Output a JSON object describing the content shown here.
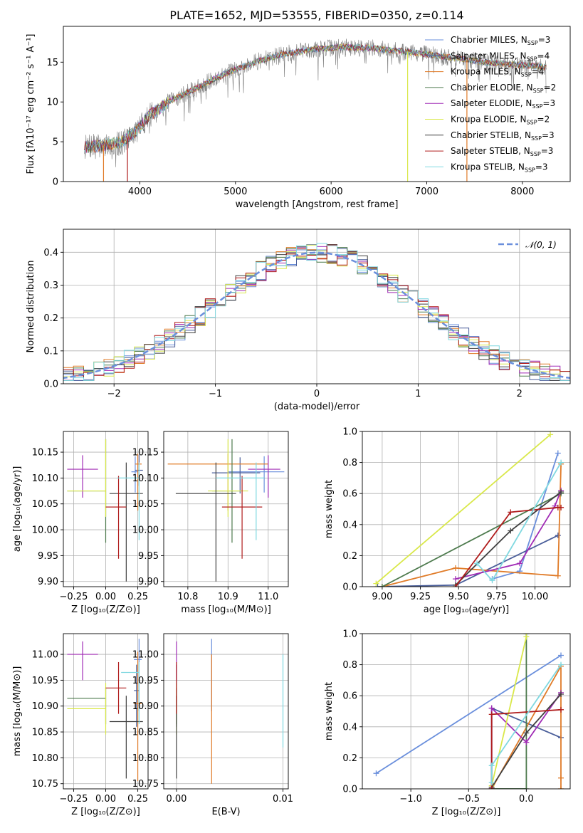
{
  "chart_data": [
    {
      "id": "spectrum",
      "type": "line",
      "title": "PLATE=1652, MJD=53555, FIBERID=0350, z=0.114",
      "xlabel": "wavelength [Angstrom, rest frame]",
      "ylabel": "Flux [fλ10⁻¹⁷ erg cm⁻² s⁻¹ A⁻¹]",
      "xlim": [
        3200,
        8500
      ],
      "ylim": [
        0,
        19.5
      ],
      "xticks": [
        4000,
        5000,
        6000,
        7000,
        8000
      ],
      "yticks": [
        0,
        5,
        10,
        15
      ],
      "grid": false,
      "legend_position": "right",
      "data_color": "#7f7f7f",
      "continuum_x": [
        3420,
        3600,
        3800,
        3950,
        4100,
        4300,
        4600,
        4900,
        5200,
        5500,
        5800,
        6100,
        6400,
        6700,
        7000,
        7300,
        7600,
        7900,
        8250
      ],
      "continuum_y": [
        4.3,
        4.5,
        4.9,
        6.2,
        8.3,
        10.0,
        11.8,
        13.6,
        15.0,
        16.0,
        16.6,
        16.9,
        16.8,
        16.4,
        16.0,
        15.5,
        15.0,
        14.7,
        14.4
      ],
      "series": [
        {
          "name": "Chabrier MILES, Nₛₛₚ=3",
          "label": "Chabrier MILES, N",
          "sub": "SSP",
          "suffix": "=3",
          "color": "#6a8fdc"
        },
        {
          "name": "Salpeter MILES, Nₛₛₚ=4",
          "label": "Salpeter MILES, N",
          "sub": "SSP",
          "suffix": "=4",
          "color": "#4a5e9a"
        },
        {
          "name": "Kroupa MILES, Nₛₛₚ=4",
          "label": "Kroupa MILES, N",
          "sub": "SSP",
          "suffix": "=4",
          "color": "#e07b28"
        },
        {
          "name": "Chabrier ELODIE, Nₛₛₚ=2",
          "label": "Chabrier ELODIE, N",
          "sub": "SSP",
          "suffix": "=2",
          "color": "#4d7a4d"
        },
        {
          "name": "Salpeter ELODIE, Nₛₛₚ=3",
          "label": "Salpeter ELODIE, N",
          "sub": "SSP",
          "suffix": "=3",
          "color": "#a02bb5"
        },
        {
          "name": "Kroupa ELODIE, Nₛₛₚ=2",
          "label": "Kroupa ELODIE, N",
          "sub": "SSP",
          "suffix": "=2",
          "color": "#d9e84a"
        },
        {
          "name": "Chabrier STELIB, Nₛₛₚ=3",
          "label": "Chabrier STELIB, N",
          "sub": "SSP",
          "suffix": "=3",
          "color": "#404040"
        },
        {
          "name": "Salpeter STELIB, Nₛₛₚ=3",
          "label": "Salpeter STELIB, N",
          "sub": "SSP",
          "suffix": "=3",
          "color": "#b01c1c"
        },
        {
          "name": "Kroupa STELIB, Nₛₛₚ=3",
          "label": "Kroupa STELIB, N",
          "sub": "SSP",
          "suffix": "=3",
          "color": "#7fd8e0"
        }
      ]
    },
    {
      "id": "residuals",
      "type": "line",
      "xlabel": "(data-model)/error",
      "ylabel": "Normed distribution",
      "xlim": [
        -2.5,
        2.5
      ],
      "ylim": [
        0,
        0.47
      ],
      "xticks": [
        -2,
        -1,
        0,
        1,
        2
      ],
      "xtick_labels": [
        "−2",
        "−1",
        "0",
        "1",
        "2"
      ],
      "yticks": [
        0.0,
        0.1,
        0.2,
        0.3,
        0.4
      ],
      "ytick_labels": [
        "0.0",
        "0.1",
        "0.2",
        "0.3",
        "0.4"
      ],
      "grid": true,
      "legend_position": "top-right",
      "reference_curve": {
        "label": "𝒩(0, 1)",
        "color": "#6a8fdc",
        "style": "dashed"
      },
      "bin_width": 0.1
    },
    {
      "id": "age_vs_Z",
      "type": "scatter",
      "xlabel": "Z [log₁₀(Z/Z⊙)]",
      "ylabel": "age  [log₁₀(age/yr)]",
      "xlim": [
        -0.33,
        0.33
      ],
      "ylim": [
        9.89,
        10.19
      ],
      "xticks": [
        -0.25,
        0.0,
        0.25
      ],
      "xtick_labels": [
        "−0.25",
        "0.00",
        "0.25"
      ],
      "yticks": [
        9.9,
        9.95,
        10.0,
        10.05,
        10.1,
        10.15
      ],
      "ytick_labels": [
        "9.90",
        "9.95",
        "10.00",
        "10.05",
        "10.10",
        "10.15"
      ],
      "grid": true,
      "points": [
        {
          "series": 0,
          "x": 0.23,
          "xerr": [
            0.03,
            0.02
          ],
          "y": 10.112,
          "yerr": [
            0.04,
            0.03
          ]
        },
        {
          "series": 1,
          "x": 0.26,
          "xerr": [
            0.03,
            0.03
          ],
          "y": 10.115,
          "yerr": [
            0.03,
            0.03
          ]
        },
        {
          "series": 2,
          "x": 0.25,
          "xerr": [
            0.02,
            0.03
          ],
          "y": 10.127,
          "yerr": [
            0.09,
            0.02
          ]
        },
        {
          "series": 3,
          "x": 0.0,
          "xerr": [
            0.3,
            0.0
          ],
          "y": 10.075,
          "yerr": [
            0.1,
            0.1
          ]
        },
        {
          "series": 4,
          "x": -0.18,
          "xerr": [
            0.12,
            0.12
          ],
          "y": 10.117,
          "yerr": [
            0.055,
            0.027
          ]
        },
        {
          "series": 5,
          "x": 0.0,
          "xerr": [
            0.3,
            0.0
          ],
          "y": 10.075,
          "yerr": [
            0.05,
            0.1
          ]
        },
        {
          "series": 6,
          "x": 0.16,
          "xerr": [
            0.13,
            0.13
          ],
          "y": 10.07,
          "yerr": [
            0.17,
            0.06
          ]
        },
        {
          "series": 7,
          "x": 0.1,
          "xerr": [
            0.1,
            0.06
          ],
          "y": 10.044,
          "yerr": [
            0.1,
            0.06
          ]
        },
        {
          "series": 8,
          "x": 0.26,
          "xerr": [
            0.17,
            0.0
          ],
          "y": 10.1,
          "yerr": [
            0.12,
            0.03
          ]
        }
      ]
    },
    {
      "id": "age_vs_mass",
      "type": "scatter",
      "xlabel": "mass [log₁₀(M/M⊙)]",
      "ylabel": "",
      "xlim": [
        10.74,
        11.05
      ],
      "ylim": [
        9.89,
        10.19
      ],
      "xticks": [
        10.8,
        10.9,
        11.0
      ],
      "xtick_labels": [
        "10.8",
        "10.9",
        "11.0"
      ],
      "yticks": [
        9.9,
        9.95,
        10.0,
        10.05,
        10.1,
        10.15
      ],
      "ytick_labels": [
        "9.90",
        "9.95",
        "10.00",
        "10.05",
        "10.10",
        "10.15"
      ],
      "grid": true,
      "points": [
        {
          "series": 0,
          "x": 10.99,
          "xerr": [
            0.09,
            0.05
          ],
          "y": 10.112,
          "yerr": [
            0.04,
            0.03
          ]
        },
        {
          "series": 1,
          "x": 10.93,
          "xerr": [
            0.07,
            0.05
          ],
          "y": 10.11,
          "yerr": [
            0.04,
            0.03
          ]
        },
        {
          "series": 2,
          "x": 10.9,
          "xerr": [
            0.15,
            0.1
          ],
          "y": 10.127,
          "yerr": [
            0.09,
            0.02
          ]
        },
        {
          "series": 3,
          "x": 10.91,
          "xerr": [
            0.05,
            0.02
          ],
          "y": 10.075,
          "yerr": [
            0.1,
            0.1
          ]
        },
        {
          "series": 4,
          "x": 11.0,
          "xerr": [
            0.05,
            0.03
          ],
          "y": 10.117,
          "yerr": [
            0.055,
            0.027
          ]
        },
        {
          "series": 5,
          "x": 10.9,
          "xerr": [
            0.05,
            0.05
          ],
          "y": 10.075,
          "yerr": [
            0.05,
            0.1
          ]
        },
        {
          "series": 6,
          "x": 10.87,
          "xerr": [
            0.1,
            0.05
          ],
          "y": 10.07,
          "yerr": [
            0.17,
            0.06
          ]
        },
        {
          "series": 7,
          "x": 10.935,
          "xerr": [
            0.05,
            0.05
          ],
          "y": 10.044,
          "yerr": [
            0.1,
            0.06
          ]
        },
        {
          "series": 8,
          "x": 10.97,
          "xerr": [
            0.1,
            0.02
          ],
          "y": 10.1,
          "yerr": [
            0.12,
            0.03
          ]
        }
      ]
    },
    {
      "id": "weight_vs_age",
      "type": "line",
      "xlabel": "age  [log₁₀(age/yr)]",
      "ylabel": "mass weight",
      "xlim": [
        8.87,
        10.23
      ],
      "ylim": [
        0.0,
        1.0
      ],
      "xticks": [
        9.0,
        9.25,
        9.5,
        9.75,
        10.0
      ],
      "xtick_labels": [
        "9.00",
        "9.25",
        "9.50",
        "9.75",
        "10.00"
      ],
      "yticks": [
        0.0,
        0.2,
        0.4,
        0.6,
        0.8,
        1.0
      ],
      "ytick_labels": [
        "0.0",
        "0.2",
        "0.4",
        "0.6",
        "0.8",
        "1.0"
      ],
      "grid": true,
      "lines": [
        {
          "series": 0,
          "x": [
            9.72,
            9.9,
            10.15
          ],
          "y": [
            0.05,
            0.1,
            0.86
          ]
        },
        {
          "series": 1,
          "x": [
            8.97,
            9.48,
            10.15
          ],
          "y": [
            0.0,
            0.01,
            0.33
          ]
        },
        {
          "series": 2,
          "x": [
            9.0,
            9.48,
            10.15,
            10.17
          ],
          "y": [
            0.0,
            0.12,
            0.07,
            0.79
          ]
        },
        {
          "series": 3,
          "x": [
            9.0,
            10.17
          ],
          "y": [
            0.0,
            0.6
          ]
        },
        {
          "series": 4,
          "x": [
            9.48,
            9.9,
            10.13,
            10.17
          ],
          "y": [
            0.05,
            0.15,
            0.52,
            0.62
          ]
        },
        {
          "series": 5,
          "x": [
            8.96,
            10.1
          ],
          "y": [
            0.02,
            0.98
          ]
        },
        {
          "series": 6,
          "x": [
            9.48,
            9.84,
            10.17
          ],
          "y": [
            0.01,
            0.36,
            0.61
          ]
        },
        {
          "series": 7,
          "x": [
            9.48,
            9.84,
            10.15,
            10.17
          ],
          "y": [
            0.0,
            0.48,
            0.51,
            0.51
          ]
        },
        {
          "series": 8,
          "x": [
            9.62,
            9.72,
            10.17
          ],
          "y": [
            0.15,
            0.04,
            0.8
          ]
        }
      ]
    },
    {
      "id": "mass_vs_Z",
      "type": "scatter",
      "xlabel": "Z [log₁₀(Z/Z⊙)]",
      "ylabel": "mass [log₁₀(M/M⊙)]",
      "xlim": [
        -0.33,
        0.33
      ],
      "ylim": [
        10.74,
        11.04
      ],
      "xticks": [
        -0.25,
        0.0,
        0.25
      ],
      "xtick_labels": [
        "−0.25",
        "0.00",
        "0.25"
      ],
      "yticks": [
        10.75,
        10.8,
        10.85,
        10.9,
        10.95,
        11.0
      ],
      "ytick_labels": [
        "10.75",
        "10.80",
        "10.85",
        "10.90",
        "10.95",
        "11.00"
      ],
      "grid": true,
      "points": [
        {
          "series": 0,
          "x": 0.26,
          "xerr": [
            0.04,
            0.02
          ],
          "y": 10.99,
          "yerr": [
            0.1,
            0.04
          ]
        },
        {
          "series": 1,
          "x": 0.24,
          "xerr": [
            0.02,
            0.02
          ],
          "y": 10.93,
          "yerr": [
            0.07,
            0.05
          ]
        },
        {
          "series": 2,
          "x": 0.25,
          "xerr": [
            0.03,
            0.03
          ],
          "y": 10.905,
          "yerr": [
            0.15,
            0.1
          ]
        },
        {
          "series": 3,
          "x": 0.0,
          "xerr": [
            0.3,
            0.0
          ],
          "y": 10.915,
          "yerr": [
            0.05,
            0.02
          ]
        },
        {
          "series": 4,
          "x": -0.18,
          "xerr": [
            0.12,
            0.12
          ],
          "y": 11.0,
          "yerr": [
            0.05,
            0.025
          ]
        },
        {
          "series": 5,
          "x": 0.0,
          "xerr": [
            0.3,
            0.0
          ],
          "y": 10.895,
          "yerr": [
            0.05,
            0.05
          ]
        },
        {
          "series": 6,
          "x": 0.16,
          "xerr": [
            0.13,
            0.13
          ],
          "y": 10.87,
          "yerr": [
            0.11,
            0.05
          ]
        },
        {
          "series": 7,
          "x": 0.1,
          "xerr": [
            0.1,
            0.06
          ],
          "y": 10.935,
          "yerr": [
            0.05,
            0.05
          ]
        },
        {
          "series": 8,
          "x": 0.26,
          "xerr": [
            0.14,
            0.0
          ],
          "y": 10.965,
          "yerr": [
            0.1,
            0.02
          ]
        }
      ]
    },
    {
      "id": "mass_vs_EBV",
      "type": "scatter",
      "xlabel": "E(B-V)",
      "ylabel": "",
      "xlim": [
        -0.0012,
        0.0105
      ],
      "ylim": [
        10.74,
        11.04
      ],
      "xticks": [
        0.0,
        0.01
      ],
      "xtick_labels": [
        "0.00",
        "0.01"
      ],
      "yticks": [
        10.75,
        10.8,
        10.85,
        10.9,
        10.95,
        11.0
      ],
      "ytick_labels": [
        "10.75",
        "10.80",
        "10.85",
        "10.90",
        "10.95",
        "11.00"
      ],
      "grid": true,
      "points": [
        {
          "series": 0,
          "x": 0.0033,
          "xerr": [
            0,
            0
          ],
          "y": 10.99,
          "yerr": [
            0.1,
            0.04
          ]
        },
        {
          "series": 1,
          "x": 0.0,
          "xerr": [
            0,
            0
          ],
          "y": 10.93,
          "yerr": [
            0.07,
            0.05
          ]
        },
        {
          "series": 2,
          "x": 0.0033,
          "xerr": [
            0,
            0
          ],
          "y": 10.9,
          "yerr": [
            0.15,
            0.1
          ]
        },
        {
          "series": 3,
          "x": 0.0,
          "xerr": [
            0,
            0
          ],
          "y": 10.915,
          "yerr": [
            0.05,
            0.02
          ]
        },
        {
          "series": 4,
          "x": 0.0,
          "xerr": [
            0,
            0
          ],
          "y": 11.0,
          "yerr": [
            0.05,
            0.025
          ]
        },
        {
          "series": 5,
          "x": 0.0,
          "xerr": [
            0,
            0
          ],
          "y": 10.895,
          "yerr": [
            0.05,
            0.05
          ]
        },
        {
          "series": 6,
          "x": 0.0,
          "xerr": [
            0,
            0
          ],
          "y": 10.87,
          "yerr": [
            0.11,
            0.05
          ]
        },
        {
          "series": 7,
          "x": 0.0,
          "xerr": [
            0,
            0
          ],
          "y": 10.935,
          "yerr": [
            0.05,
            0.05
          ]
        },
        {
          "series": 8,
          "x": 0.01,
          "xerr": [
            0,
            0
          ],
          "y": 10.9,
          "yerr": [
            0.08,
            0.1
          ]
        }
      ]
    },
    {
      "id": "weight_vs_Z",
      "type": "line",
      "xlabel": "Z [log₁₀(Z/Z⊙)]",
      "ylabel": "mass weight",
      "xlim": [
        -1.42,
        0.38
      ],
      "ylim": [
        0.0,
        1.0
      ],
      "xticks": [
        -1.0,
        -0.5,
        0.0
      ],
      "xtick_labels": [
        "−1.0",
        "−0.5",
        "0.0"
      ],
      "yticks": [
        0.0,
        0.2,
        0.4,
        0.6,
        0.8,
        1.0
      ],
      "ytick_labels": [
        "0.0",
        "0.2",
        "0.4",
        "0.6",
        "0.8",
        "1.0"
      ],
      "grid": true,
      "lines": [
        {
          "series": 0,
          "x": [
            -1.3,
            0.3
          ],
          "y": [
            0.1,
            0.86
          ]
        },
        {
          "series": 1,
          "x": [
            -0.3,
            -0.3,
            0.3
          ],
          "y": [
            0.0,
            0.52,
            0.33
          ]
        },
        {
          "series": 2,
          "x": [
            -0.3,
            0.3,
            0.3,
            0.3
          ],
          "y": [
            0.0,
            0.79,
            0.07,
            0.0
          ]
        },
        {
          "series": 3,
          "x": [
            -0.3,
            0.0,
            0.0
          ],
          "y": [
            0.0,
            0.0,
            1.0
          ]
        },
        {
          "series": 4,
          "x": [
            -0.3,
            -0.3,
            0.0,
            0.3
          ],
          "y": [
            0.0,
            0.52,
            0.3,
            0.62
          ]
        },
        {
          "series": 5,
          "x": [
            -0.3,
            0.0
          ],
          "y": [
            0.02,
            0.98
          ]
        },
        {
          "series": 6,
          "x": [
            -0.3,
            0.0,
            0.3
          ],
          "y": [
            0.01,
            0.36,
            0.61
          ]
        },
        {
          "series": 7,
          "x": [
            -0.3,
            -0.3,
            0.3
          ],
          "y": [
            0.0,
            0.48,
            0.51
          ]
        },
        {
          "series": 8,
          "x": [
            -0.3,
            -0.3,
            0.3
          ],
          "y": [
            0.04,
            0.15,
            0.8
          ]
        }
      ]
    }
  ]
}
